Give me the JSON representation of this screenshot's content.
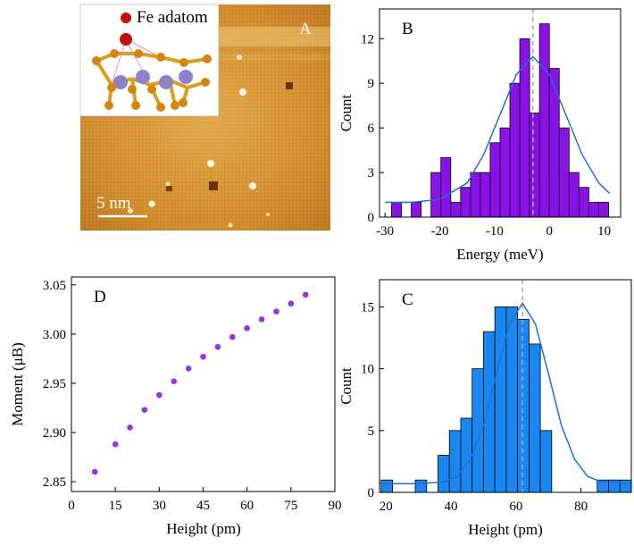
{
  "image": {
    "panel_label": "A",
    "legend": "Fe adatom",
    "scale_bar": "5 nm"
  },
  "chart_data": [
    {
      "type": "histogram",
      "panel_label": "B",
      "x_label": "Energy (meV)",
      "y_label": "Count",
      "color": "#8a12e8",
      "bins": [
        -28.8,
        -27,
        -25.2,
        -23.4,
        -21.6,
        -19.8,
        -18,
        -16.2,
        -14.4,
        -12.6,
        -10.8,
        -9,
        -7.2,
        -5.4,
        -3.6,
        -1.8,
        0,
        1.8,
        3.6,
        5.4,
        7.2,
        9,
        10.8
      ],
      "values": [
        1,
        0,
        1,
        0,
        3,
        4,
        1,
        2,
        3,
        3,
        5,
        6,
        9,
        12,
        7,
        13,
        10,
        6,
        3,
        2,
        1,
        1
      ],
      "fit": {
        "color": "#1f6fd6",
        "x": [
          -30,
          -25,
          -20,
          -15,
          -12,
          -9,
          -6,
          -3,
          0,
          3,
          6,
          9,
          11
        ],
        "values": [
          1,
          1,
          1.2,
          2.3,
          4.2,
          6.9,
          9.6,
          10.8,
          9.6,
          6.9,
          4.2,
          2.3,
          1.6
        ]
      },
      "vline": -3,
      "xlim": [
        -31,
        13
      ],
      "ylim": [
        0,
        14
      ],
      "xticks": [
        -30,
        -20,
        -10,
        0,
        10
      ],
      "yticks": [
        0,
        3,
        6,
        9,
        12
      ]
    },
    {
      "type": "scatter",
      "panel_label": "D",
      "x_label": "Height (pm)",
      "y_label": "Moment (μB)",
      "color": "#9b30e8",
      "x": [
        8,
        15,
        20,
        25,
        30,
        35,
        40,
        45,
        50,
        55,
        60,
        65,
        70,
        75,
        80
      ],
      "values": [
        2.86,
        2.888,
        2.905,
        2.923,
        2.938,
        2.952,
        2.965,
        2.977,
        2.987,
        2.997,
        3.006,
        3.015,
        3.023,
        3.031,
        3.04
      ],
      "xlim": [
        0,
        90
      ],
      "ylim": [
        2.84,
        3.058
      ],
      "xticks": [
        0,
        15,
        30,
        45,
        60,
        75,
        90
      ],
      "yticks": [
        2.85,
        {
          "value": 2.9,
          "label": "2.90"
        },
        2.95,
        {
          "value": 3,
          "label": "3.00"
        },
        3.05
      ]
    },
    {
      "type": "histogram",
      "panel_label": "C",
      "x_label": "Height (pm)",
      "y_label": "Count",
      "color": "#1a87f0",
      "bins": [
        18.5,
        22,
        25.5,
        29,
        32.5,
        36,
        39.5,
        43,
        46.5,
        50,
        53.5,
        57,
        60.5,
        64,
        67.5,
        71,
        74.5,
        78,
        81.5,
        85,
        88.5,
        92,
        95.5
      ],
      "values": [
        1,
        0,
        0,
        1,
        0,
        3,
        5,
        6,
        10,
        13,
        15,
        15,
        14,
        12,
        5,
        0,
        0,
        0,
        0,
        1,
        1,
        1
      ],
      "fit": {
        "color": "#1f6fd6",
        "x": [
          18,
          30,
          38,
          42,
          46,
          50,
          54,
          58,
          62,
          66,
          70,
          74,
          78,
          82,
          86,
          95
        ],
        "values": [
          0.7,
          0.7,
          0.86,
          1.3,
          2.7,
          5.4,
          9.6,
          13.6,
          15.3,
          13.6,
          9.6,
          5.4,
          2.7,
          1.3,
          0.86,
          0.7
        ]
      },
      "vline": 62,
      "xlim": [
        18,
        95.5
      ],
      "ylim": [
        0,
        17.2
      ],
      "xticks": [
        20,
        40,
        60,
        80
      ],
      "yticks": [
        0,
        5,
        10,
        15
      ]
    }
  ]
}
